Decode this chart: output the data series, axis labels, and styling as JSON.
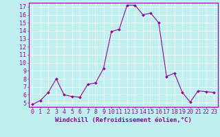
{
  "x": [
    0,
    1,
    2,
    3,
    4,
    5,
    6,
    7,
    8,
    9,
    10,
    11,
    12,
    13,
    14,
    15,
    16,
    17,
    18,
    19,
    20,
    21,
    22,
    23
  ],
  "y": [
    4.8,
    5.3,
    6.3,
    8.0,
    6.0,
    5.8,
    5.7,
    7.3,
    7.5,
    9.3,
    13.9,
    14.2,
    17.2,
    17.2,
    16.0,
    16.2,
    15.0,
    8.3,
    8.7,
    6.3,
    5.1,
    6.5,
    6.4,
    6.3
  ],
  "line_color": "#990099",
  "marker": "D",
  "marker_size": 2,
  "bg_color": "#bfefef",
  "grid_color": "#ffffff",
  "tick_color": "#990099",
  "xlabel": "Windchill (Refroidissement éolien,°C)",
  "ylabel_ticks": [
    5,
    6,
    7,
    8,
    9,
    10,
    11,
    12,
    13,
    14,
    15,
    16,
    17
  ],
  "xlim": [
    -0.5,
    23.5
  ],
  "ylim": [
    4.5,
    17.5
  ],
  "xticks": [
    0,
    1,
    2,
    3,
    4,
    5,
    6,
    7,
    8,
    9,
    10,
    11,
    12,
    13,
    14,
    15,
    16,
    17,
    18,
    19,
    20,
    21,
    22,
    23
  ],
  "font_size": 6,
  "label_font_size": 6.5
}
